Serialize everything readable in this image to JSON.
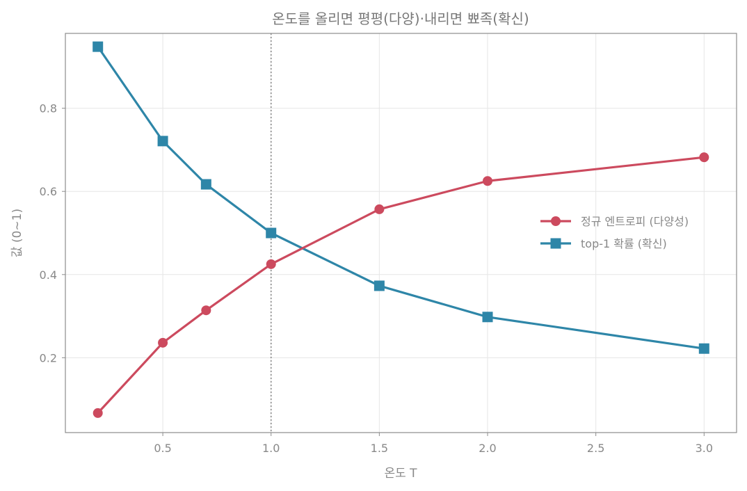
{
  "chart_data": {
    "type": "line",
    "title": "온도를 올리면 평평(다양)·내리면 뾰족(확신)",
    "xlabel": "온도 T",
    "ylabel": "값 (0~1)",
    "xlim": [
      0.05,
      3.15
    ],
    "ylim": [
      0.02,
      0.98
    ],
    "xticks": [
      0.5,
      1.0,
      1.5,
      2.0,
      2.5,
      3.0
    ],
    "xtick_labels": [
      "0.5",
      "1.0",
      "1.5",
      "2.0",
      "2.5",
      "3.0"
    ],
    "yticks": [
      0.2,
      0.4,
      0.6,
      0.8
    ],
    "ytick_labels": [
      "0.2",
      "0.4",
      "0.6",
      "0.8"
    ],
    "grid": true,
    "reference_line": {
      "x": 1.0,
      "style": "dotted",
      "color": "#888888"
    },
    "legend_position": "center-right",
    "series": [
      {
        "name": "정규 엔트로피 (다양성)",
        "color": "#cc4a5e",
        "marker": "circle",
        "x": [
          0.2,
          0.5,
          0.7,
          1.0,
          1.5,
          2.0,
          3.0
        ],
        "y": [
          0.067,
          0.236,
          0.314,
          0.425,
          0.557,
          0.625,
          0.682
        ]
      },
      {
        "name": "top-1 확률 (확신)",
        "color": "#2e86a8",
        "marker": "square",
        "x": [
          0.2,
          0.5,
          0.7,
          1.0,
          1.5,
          2.0,
          3.0
        ],
        "y": [
          0.948,
          0.721,
          0.617,
          0.5,
          0.373,
          0.298,
          0.222
        ]
      }
    ]
  }
}
